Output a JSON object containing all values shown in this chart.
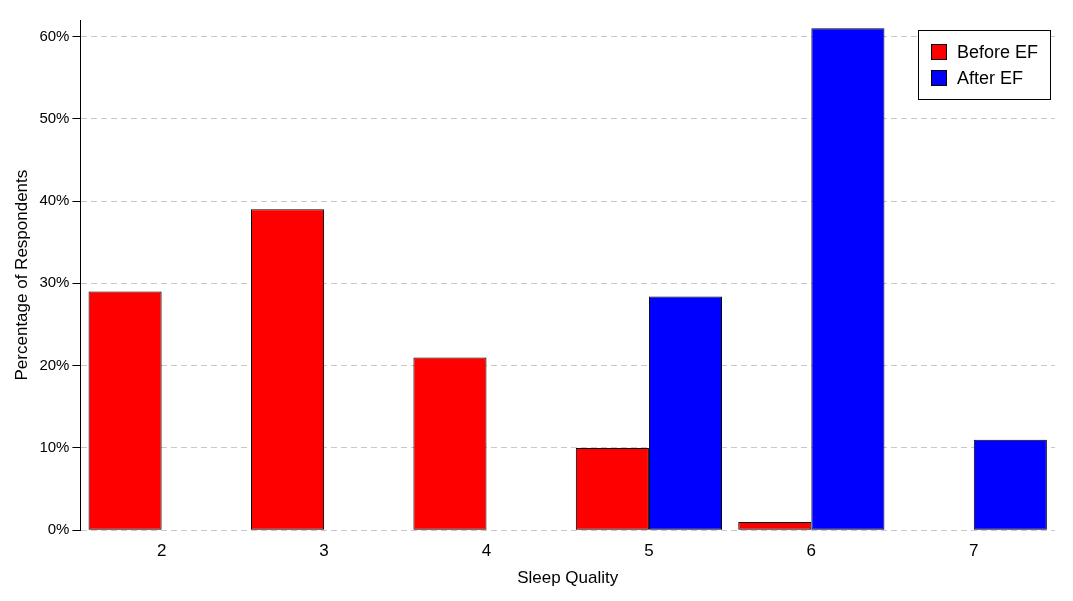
{
  "chart_data": {
    "type": "bar",
    "xlabel": "Sleep Quality",
    "ylabel": "Percentage of Respondents",
    "categories": [
      "2",
      "3",
      "4",
      "5",
      "6",
      "7"
    ],
    "series": [
      {
        "name": "Before EF",
        "color": "#ff0000",
        "values": [
          29,
          39,
          21,
          10,
          1,
          0
        ]
      },
      {
        "name": "After EF",
        "color": "#0000ff",
        "values": [
          0,
          0,
          0,
          28.4,
          61,
          11
        ]
      }
    ],
    "ylim": [
      0,
      62
    ],
    "yticks": [
      {
        "value": 0,
        "label": "0%"
      },
      {
        "value": 10,
        "label": "10%"
      },
      {
        "value": 20,
        "label": "20%"
      },
      {
        "value": 30,
        "label": "30%"
      },
      {
        "value": 40,
        "label": "40%"
      },
      {
        "value": 50,
        "label": "50%"
      },
      {
        "value": 60,
        "label": "60%"
      }
    ],
    "grid": "y",
    "legend": "top right"
  }
}
